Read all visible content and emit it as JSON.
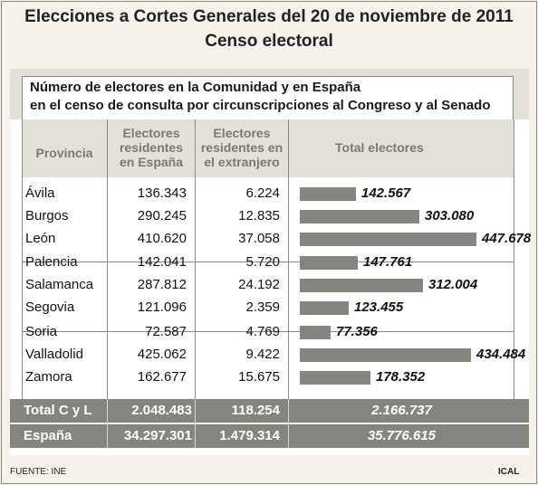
{
  "title_line1": "Elecciones a Cortes Generales del 20 de noviembre de 2011",
  "title_line2": "Censo electoral",
  "subtitle_line1": "Número de electores en la Comunidad y en España",
  "subtitle_line2": "en el censo de consulta por circunscripciones al Congreso y al Senado",
  "headers": {
    "provincia": "Provincia",
    "espana_l1": "Electores",
    "espana_l2": "residentes",
    "espana_l3": "en España",
    "extranjero_l1": "Electores",
    "extranjero_l2": "residentes en",
    "extranjero_l3": "el extranjero",
    "total": "Total electores"
  },
  "chart_data": {
    "type": "table",
    "title": "Número de electores en la Comunidad y en España en el censo de consulta por circunscripciones al Congreso y al Senado",
    "columns": [
      "Provincia",
      "Electores residentes en España",
      "Electores residentes en el extranjero",
      "Total electores"
    ],
    "rows": [
      {
        "provincia": "Ávila",
        "espana": "136.343",
        "extranjero": "6.224",
        "total": "142.567",
        "total_value": 142567
      },
      {
        "provincia": "Burgos",
        "espana": "290.245",
        "extranjero": "12.835",
        "total": "303.080",
        "total_value": 303080
      },
      {
        "provincia": "León",
        "espana": "410.620",
        "extranjero": "37.058",
        "total": "447.678",
        "total_value": 447678
      },
      {
        "provincia": "Palencia",
        "espana": "142.041",
        "extranjero": "5.720",
        "total": "147.761",
        "total_value": 147761
      },
      {
        "provincia": "Salamanca",
        "espana": "287.812",
        "extranjero": "24.192",
        "total": "312.004",
        "total_value": 312004
      },
      {
        "provincia": "Segovia",
        "espana": "121.096",
        "extranjero": "2.359",
        "total": "123.455",
        "total_value": 123455
      },
      {
        "provincia": "Soria",
        "espana": "72.587",
        "extranjero": "4.769",
        "total": "77.356",
        "total_value": 77356
      },
      {
        "provincia": "Valladolid",
        "espana": "425.062",
        "extranjero": "9.422",
        "total": "434.484",
        "total_value": 434484
      },
      {
        "provincia": "Zamora",
        "espana": "162.677",
        "extranjero": "15.675",
        "total": "178.352",
        "total_value": 178352
      }
    ],
    "totals": [
      {
        "provincia": "Total C y L",
        "espana": "2.048.483",
        "extranjero": "118.254",
        "total": "2.166.737"
      },
      {
        "provincia": "España",
        "espana": "34.297.301",
        "extranjero": "1.479.314",
        "total": "35.776.615"
      }
    ],
    "bar_color": "#858580"
  },
  "footer": {
    "source": "FUENTE: INE",
    "credit": "ICAL"
  }
}
